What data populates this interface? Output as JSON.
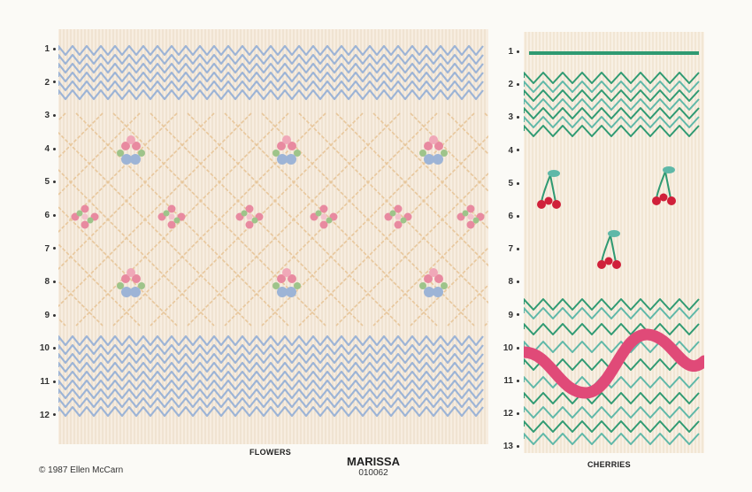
{
  "left_panel": {
    "caption": "FLOWERS",
    "row_numbers": [
      "1",
      "2",
      "3",
      "4",
      "5",
      "6",
      "7",
      "8",
      "9",
      "10",
      "11",
      "12"
    ]
  },
  "right_panel": {
    "caption": "CHERRIES",
    "row_numbers": [
      "1",
      "2",
      "3",
      "4",
      "5",
      "6",
      "7",
      "8",
      "9",
      "10",
      "11",
      "12",
      "13"
    ]
  },
  "footer": {
    "copyright": "© 1987 Ellen McCarn",
    "title": "MARISSA",
    "code": "010062"
  },
  "colors": {
    "fabric": "#f7ede0",
    "pleat": "#e8d9c2",
    "blue_stitch": "#9db4d6",
    "peach_stitch": "#e8c79c",
    "pink_flower": "#e88aa0",
    "green_leaf": "#9ec48a",
    "teal_stitch": "#5fb8a8",
    "dark_green": "#2f9a72",
    "cherry_red": "#d0203a",
    "ribbon_pink": "#e04a78"
  }
}
